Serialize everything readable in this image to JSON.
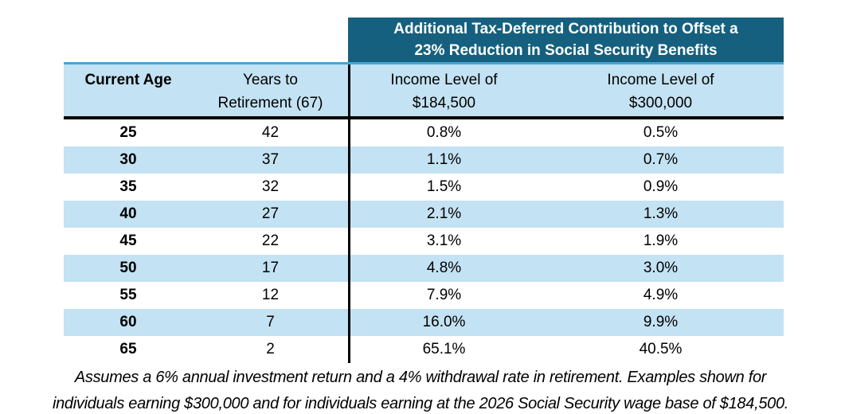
{
  "colors": {
    "banner_bg": "#16607f",
    "banner_text": "#ffffff",
    "stripe_bg": "#c3e2f3",
    "accent_line": "#45a6d3",
    "divider": "#000000"
  },
  "banner": {
    "line1": "Additional Tax-Deferred Contribution to Offset a",
    "line2": "23% Reduction in Social Security Benefits"
  },
  "table": {
    "headers": {
      "current_age": "Current Age",
      "years_line1": "Years to",
      "years_line2": "Retirement (67)",
      "income1_line1": "Income Level of",
      "income1_line2": "$184,500",
      "income2_line1": "Income Level of",
      "income2_line2": "$300,000"
    },
    "rows": [
      {
        "age": "25",
        "years": "42",
        "income_184500": "0.8%",
        "income_300000": "0.5%"
      },
      {
        "age": "30",
        "years": "37",
        "income_184500": "1.1%",
        "income_300000": "0.7%"
      },
      {
        "age": "35",
        "years": "32",
        "income_184500": "1.5%",
        "income_300000": "0.9%"
      },
      {
        "age": "40",
        "years": "27",
        "income_184500": "2.1%",
        "income_300000": "1.3%"
      },
      {
        "age": "45",
        "years": "22",
        "income_184500": "3.1%",
        "income_300000": "1.9%"
      },
      {
        "age": "50",
        "years": "17",
        "income_184500": "4.8%",
        "income_300000": "3.0%"
      },
      {
        "age": "55",
        "years": "12",
        "income_184500": "7.9%",
        "income_300000": "4.9%"
      },
      {
        "age": "60",
        "years": "7",
        "income_184500": "16.0%",
        "income_300000": "9.9%"
      },
      {
        "age": "65",
        "years": "2",
        "income_184500": "65.1%",
        "income_300000": "40.5%"
      }
    ]
  },
  "footnote": {
    "line1": "Assumes a 6% annual investment return and a 4% withdrawal rate in retirement. Examples shown for",
    "line2": "individuals earning $300,000 and for individuals earning at the 2026 Social Security wage base of $184,500."
  }
}
